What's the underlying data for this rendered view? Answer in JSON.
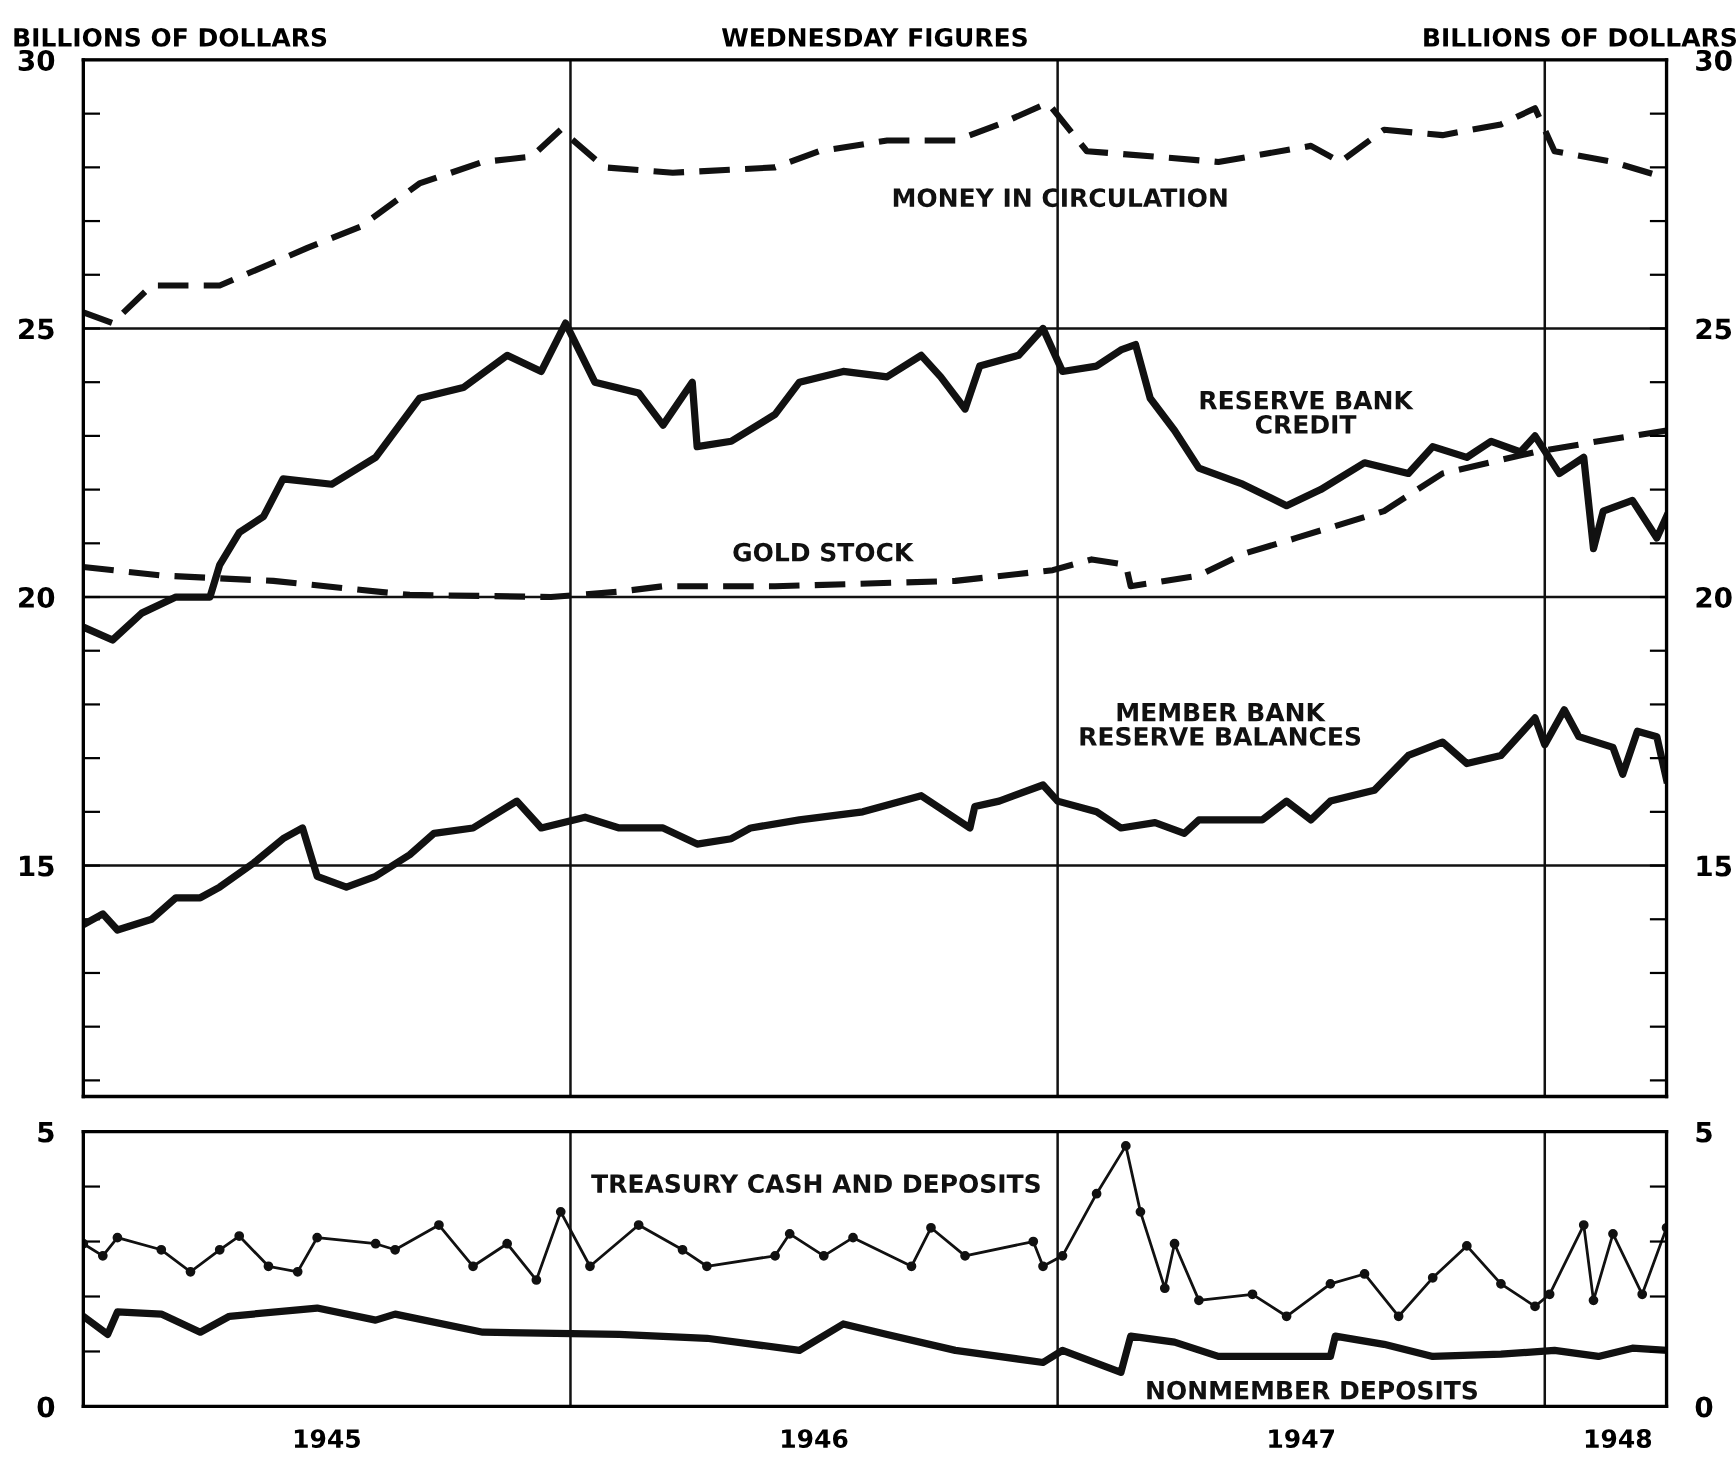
{
  "chart_data": [
    {
      "type": "line",
      "title": "WEDNESDAY FIGURES",
      "ylabel": "BILLIONS OF DOLLARS",
      "y2label": "BILLIONS OF DOLLARS",
      "xlim": [
        1945.0,
        1948.25
      ],
      "ylim": [
        10.7,
        30
      ],
      "yticks": [
        {
          "value": 11,
          "label": null
        },
        {
          "value": 12,
          "label": null
        },
        {
          "value": 13,
          "label": null
        },
        {
          "value": 14,
          "label": null
        },
        15,
        {
          "value": 16,
          "label": null
        },
        {
          "value": 17,
          "label": null
        },
        {
          "value": 18,
          "label": null
        },
        {
          "value": 19,
          "label": null
        },
        20,
        {
          "value": 21,
          "label": null
        },
        {
          "value": 22,
          "label": null
        },
        {
          "value": 23,
          "label": null
        },
        {
          "value": 24,
          "label": null
        },
        25,
        {
          "value": 26,
          "label": null
        },
        {
          "value": 27,
          "label": null
        },
        {
          "value": 28,
          "label": null
        },
        {
          "value": 29,
          "label": null
        },
        30
      ],
      "y2lim": [
        10.7,
        30
      ],
      "y2ticks": [
        {
          "value": 11,
          "label": null
        },
        {
          "value": 12,
          "label": null
        },
        {
          "value": 13,
          "label": null
        },
        {
          "value": 14,
          "label": null
        },
        15,
        {
          "value": 16,
          "label": null
        },
        {
          "value": 17,
          "label": null
        },
        {
          "value": 18,
          "label": null
        },
        {
          "value": 19,
          "label": null
        },
        20,
        {
          "value": 21,
          "label": null
        },
        {
          "value": 22,
          "label": null
        },
        {
          "value": 23,
          "label": null
        },
        {
          "value": 24,
          "label": null
        },
        25,
        {
          "value": 26,
          "label": null
        },
        {
          "value": 27,
          "label": null
        },
        {
          "value": 28,
          "label": null
        },
        {
          "value": 29,
          "label": null
        },
        30
      ],
      "tick_labels": "y",
      "grid": false,
      "legend": false,
      "marker": "none",
      "ref_lines": [
        {
          "axis": "x",
          "value": 1946,
          "label": null
        },
        {
          "axis": "x",
          "value": 1947,
          "label": null
        },
        {
          "axis": "x",
          "value": 1948,
          "label": null
        },
        {
          "axis": "y",
          "value": 15,
          "label": null
        },
        {
          "axis": "y",
          "value": 20,
          "label": null
        },
        {
          "axis": "y",
          "value": 25,
          "label": null
        }
      ],
      "series": [
        {
          "name": "MONEY IN CIRCULATION",
          "color": "#111111",
          "line_style": "dashed",
          "x": [
            1945.0,
            1945.06,
            1945.14,
            1945.28,
            1945.46,
            1945.57,
            1945.69,
            1945.82,
            1945.92,
            1945.98,
            1946.07,
            1946.21,
            1946.42,
            1946.51,
            1946.65,
            1946.79,
            1946.88,
            1946.98,
            1947.06,
            1947.2,
            1947.33,
            1947.52,
            1947.58,
            1947.67,
            1947.79,
            1947.91,
            1947.98,
            1948.02,
            1948.14,
            1948.25
          ],
          "values": [
            25.3,
            25.1,
            25.8,
            25.8,
            26.5,
            26.9,
            27.7,
            28.1,
            28.2,
            28.7,
            28.0,
            27.9,
            28.0,
            28.3,
            28.5,
            28.5,
            28.8,
            29.2,
            28.3,
            28.2,
            28.1,
            28.4,
            28.1,
            28.7,
            28.6,
            28.8,
            29.1,
            28.3,
            28.1,
            27.8
          ]
        },
        {
          "name": "RESERVE BANK\nCREDIT",
          "color": "#111111",
          "line_style": "solid",
          "x": [
            1945.0,
            1945.06,
            1945.12,
            1945.19,
            1945.26,
            1945.28,
            1945.32,
            1945.37,
            1945.41,
            1945.51,
            1945.6,
            1945.69,
            1945.78,
            1945.87,
            1945.94,
            1945.99,
            1946.05,
            1946.14,
            1946.19,
            1946.25,
            1946.26,
            1946.33,
            1946.42,
            1946.47,
            1946.56,
            1946.65,
            1946.72,
            1946.76,
            1946.81,
            1946.84,
            1946.92,
            1946.97,
            1947.01,
            1947.08,
            1947.13,
            1947.16,
            1947.19,
            1947.24,
            1947.29,
            1947.38,
            1947.47,
            1947.54,
            1947.63,
            1947.72,
            1947.77,
            1947.84,
            1947.89,
            1947.95,
            1947.98,
            1948.03,
            1948.08,
            1948.1,
            1948.12,
            1948.18,
            1948.23,
            1948.25
          ],
          "values": [
            19.44,
            19.2,
            19.7,
            20.0,
            20.0,
            20.6,
            21.2,
            21.5,
            22.2,
            22.1,
            22.6,
            23.7,
            23.9,
            24.5,
            24.2,
            25.1,
            24.0,
            23.8,
            23.2,
            24.0,
            22.8,
            22.9,
            23.4,
            24.0,
            24.2,
            24.1,
            24.5,
            24.1,
            23.5,
            24.3,
            24.5,
            25.0,
            24.2,
            24.3,
            24.6,
            24.7,
            23.7,
            23.1,
            22.4,
            22.1,
            21.7,
            22.0,
            22.5,
            22.3,
            22.8,
            22.6,
            22.9,
            22.7,
            23.0,
            22.3,
            22.6,
            20.9,
            21.6,
            21.8,
            21.1,
            21.5
          ]
        },
        {
          "name": "GOLD STOCK",
          "color": "#111111",
          "line_style": "dashed",
          "x": [
            1945.0,
            1945.16,
            1945.39,
            1945.67,
            1945.96,
            1946.1,
            1946.19,
            1946.42,
            1946.79,
            1946.99,
            1947.07,
            1947.14,
            1947.15,
            1947.29,
            1947.38,
            1947.49,
            1947.67,
            1947.79,
            1947.98,
            1948.11,
            1948.25
          ],
          "values": [
            20.56,
            20.4,
            20.3,
            20.04,
            20.0,
            20.1,
            20.2,
            20.2,
            20.3,
            20.5,
            20.7,
            20.6,
            20.2,
            20.4,
            20.8,
            21.1,
            21.6,
            22.3,
            22.7,
            22.9,
            23.1
          ]
        },
        {
          "name": "MEMBER BANK\nRESERVE BALANCES",
          "color": "#111111",
          "line_style": "solid",
          "x": [
            1945.0,
            1945.04,
            1945.07,
            1945.14,
            1945.19,
            1945.24,
            1945.28,
            1945.35,
            1945.41,
            1945.45,
            1945.48,
            1945.54,
            1945.6,
            1945.67,
            1945.72,
            1945.8,
            1945.89,
            1945.94,
            1946.03,
            1946.1,
            1946.19,
            1946.26,
            1946.33,
            1946.37,
            1946.47,
            1946.6,
            1946.72,
            1946.82,
            1946.83,
            1946.88,
            1946.97,
            1947.0,
            1947.08,
            1947.13,
            1947.2,
            1947.26,
            1947.29,
            1947.42,
            1947.47,
            1947.52,
            1947.56,
            1947.65,
            1947.72,
            1947.79,
            1947.84,
            1947.91,
            1947.98,
            1948.0,
            1948.04,
            1948.07,
            1948.14,
            1948.16,
            1948.19,
            1948.23,
            1948.25
          ],
          "values": [
            13.9,
            14.1,
            13.8,
            14.0,
            14.4,
            14.4,
            14.6,
            15.05,
            15.5,
            15.7,
            14.8,
            14.6,
            14.8,
            15.2,
            15.6,
            15.7,
            16.2,
            15.7,
            15.9,
            15.7,
            15.7,
            15.4,
            15.5,
            15.7,
            15.85,
            16.0,
            16.3,
            15.7,
            16.1,
            16.2,
            16.5,
            16.2,
            16.0,
            15.7,
            15.8,
            15.6,
            15.85,
            15.85,
            16.2,
            15.85,
            16.2,
            16.4,
            17.05,
            17.3,
            16.9,
            17.05,
            17.75,
            17.25,
            17.9,
            17.4,
            17.2,
            16.7,
            17.5,
            17.4,
            16.6
          ]
        }
      ]
    },
    {
      "type": "line",
      "xlim": [
        1945.0,
        1948.25
      ],
      "ylim": [
        0,
        5
      ],
      "xticks": [
        {
          "value": 1945.5,
          "label": "1945"
        },
        {
          "value": 1946.5,
          "label": "1946"
        },
        {
          "value": 1947.5,
          "label": "1947"
        },
        {
          "value": 1948.15,
          "label": "1948"
        }
      ],
      "yticks": [
        0,
        {
          "value": 1,
          "label": null
        },
        {
          "value": 2,
          "label": null
        },
        {
          "value": 3,
          "label": null
        },
        {
          "value": 4,
          "label": null
        },
        5
      ],
      "y2lim": [
        0,
        5
      ],
      "y2ticks": [
        0,
        {
          "value": 1,
          "label": null
        },
        {
          "value": 2,
          "label": null
        },
        {
          "value": 3,
          "label": null
        },
        {
          "value": 4,
          "label": null
        },
        5
      ],
      "grid": false,
      "legend": false,
      "ref_lines": [
        {
          "axis": "x",
          "value": 1946,
          "label": null
        },
        {
          "axis": "x",
          "value": 1947,
          "label": null
        },
        {
          "axis": "x",
          "value": 1948,
          "label": null
        }
      ],
      "series": [
        {
          "name": "TREASURY CASH AND DEPOSITS",
          "color": "#111111",
          "line_style": "solid",
          "marker": "circle",
          "x": [
            1945.0,
            1945.04,
            1945.07,
            1945.16,
            1945.22,
            1945.28,
            1945.32,
            1945.38,
            1945.44,
            1945.48,
            1945.6,
            1945.64,
            1945.73,
            1945.8,
            1945.87,
            1945.93,
            1945.98,
            1946.04,
            1946.14,
            1946.23,
            1946.28,
            1946.42,
            1946.45,
            1946.52,
            1946.58,
            1946.7,
            1946.74,
            1946.81,
            1946.95,
            1946.97,
            1947.01,
            1947.08,
            1947.14,
            1947.17,
            1947.22,
            1947.24,
            1947.29,
            1947.4,
            1947.47,
            1947.56,
            1947.63,
            1947.7,
            1947.77,
            1947.84,
            1947.91,
            1947.98,
            1948.01,
            1948.08,
            1948.1,
            1948.14,
            1948.2,
            1948.25
          ],
          "values": [
            2.96,
            2.74,
            3.07,
            2.85,
            2.45,
            2.85,
            3.1,
            2.55,
            2.45,
            3.07,
            2.96,
            2.85,
            3.3,
            2.55,
            2.96,
            2.3,
            3.54,
            2.55,
            3.3,
            2.85,
            2.55,
            2.74,
            3.14,
            2.74,
            3.07,
            2.55,
            3.25,
            2.74,
            3.0,
            2.55,
            2.74,
            3.87,
            4.74,
            3.54,
            2.15,
            2.96,
            1.93,
            2.04,
            1.64,
            2.23,
            2.41,
            1.64,
            2.34,
            2.92,
            2.23,
            1.82,
            2.04,
            3.3,
            1.93,
            3.14,
            2.04,
            3.25
          ]
        },
        {
          "name": "NONMEMBER DEPOSITS",
          "color": "#111111",
          "line_style": "solid",
          "marker": "none",
          "x": [
            1945.0,
            1945.05,
            1945.07,
            1945.16,
            1945.24,
            1945.3,
            1945.48,
            1945.6,
            1945.64,
            1945.82,
            1946.1,
            1946.28,
            1946.47,
            1946.56,
            1946.65,
            1946.79,
            1946.97,
            1947.01,
            1947.13,
            1947.15,
            1947.24,
            1947.33,
            1947.56,
            1947.57,
            1947.67,
            1947.77,
            1947.91,
            1948.02,
            1948.11,
            1948.18,
            1948.25
          ],
          "values": [
            1.64,
            1.31,
            1.72,
            1.68,
            1.35,
            1.64,
            1.79,
            1.57,
            1.68,
            1.35,
            1.31,
            1.24,
            1.02,
            1.5,
            1.31,
            1.02,
            0.8,
            1.02,
            0.62,
            1.28,
            1.17,
            0.91,
            0.91,
            1.28,
            1.13,
            0.91,
            0.95,
            1.02,
            0.91,
            1.06,
            1.02
          ]
        }
      ]
    }
  ]
}
